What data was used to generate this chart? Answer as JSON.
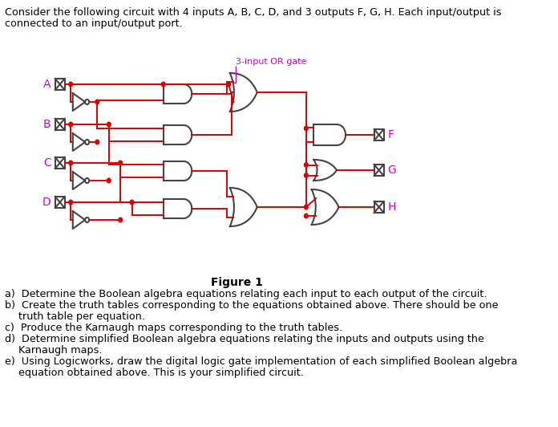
{
  "bg_color": "#ffffff",
  "wire_color": "#dd0000",
  "gate_color": "#444444",
  "label_color": "#cc00cc",
  "text_color": "#000000",
  "title_line1": "Consider the following circuit with 4 inputs A, B, C, D, and 3 outputs F, G, H. Each input/output is",
  "title_line2": "connected to an input/output port.",
  "figure_label": "Figure 1",
  "or_gate_label": "3-input OR gate",
  "questions": [
    [
      "a)",
      "Determine the Boolean algebra equations relating each input to each output of the circuit."
    ],
    [
      "b)",
      "Create the truth tables corresponding to the equations obtained above. There should be one"
    ],
    [
      "",
      "truth table per equation."
    ],
    [
      "c)",
      "Produce the Karnaugh maps corresponding to the truth tables."
    ],
    [
      "d)",
      "Determine simplified Boolean algebra equations relating the inputs and outputs using the"
    ],
    [
      "",
      "Karnaugh maps."
    ],
    [
      "e)",
      "Using Logicworks, draw the digital logic gate implementation of each simplified Boolean algebra"
    ],
    [
      "",
      "equation obtained above. This is your simplified circuit."
    ]
  ],
  "input_labels": [
    "A",
    "B",
    "C",
    "D"
  ],
  "output_labels": [
    "F",
    "G",
    "H"
  ]
}
